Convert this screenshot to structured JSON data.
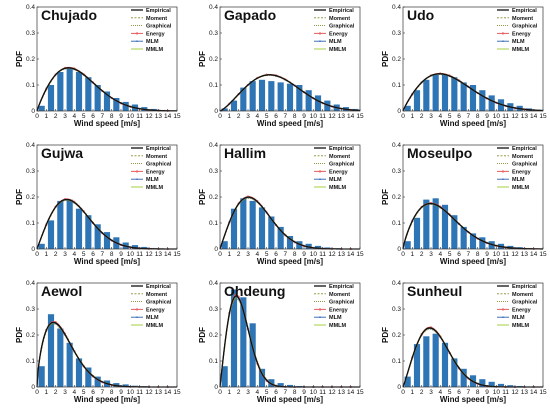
{
  "chart_data": [
    {
      "type": "bar",
      "title": "Chujado",
      "xlabel": "Wind speed [m/s]",
      "ylabel": "PDF",
      "ylim": [
        0,
        0.4
      ],
      "yticks": [
        "0",
        "0.1",
        "0.2",
        "0.3",
        "0.4"
      ],
      "xlim": [
        0,
        15
      ],
      "xticks": [
        "0",
        "1",
        "2",
        "3",
        "4",
        "5",
        "6",
        "7",
        "8",
        "9",
        "10",
        "11",
        "12",
        "13",
        "14",
        "15"
      ],
      "bin_centers": [
        0.5,
        1.5,
        2.5,
        3.5,
        4.5,
        5.5,
        6.5,
        7.5,
        8.5,
        9.5,
        10.5,
        11.5,
        12.5,
        13.5,
        14.5
      ],
      "values": [
        0.02,
        0.1,
        0.15,
        0.165,
        0.15,
        0.13,
        0.1,
        0.075,
        0.05,
        0.035,
        0.025,
        0.015,
        0.008,
        0.004,
        0.002
      ],
      "fits": {
        "shape_k": 1.9,
        "scale_c": 5.0
      },
      "legend": [
        "Empirical",
        "Moment",
        "Graphical",
        "Energy",
        "MLM",
        "MMLM"
      ]
    },
    {
      "type": "bar",
      "title": "Gapado",
      "xlabel": "Wind speed [m/s]",
      "ylabel": "PDF",
      "ylim": [
        0,
        0.4
      ],
      "yticks": [
        "0",
        "0.1",
        "0.2",
        "0.3",
        "0.4"
      ],
      "xlim": [
        0,
        15
      ],
      "xticks": [
        "0",
        "1",
        "2",
        "3",
        "4",
        "5",
        "6",
        "7",
        "8",
        "9",
        "10",
        "11",
        "12",
        "13",
        "14",
        "15"
      ],
      "bin_centers": [
        0.5,
        1.5,
        2.5,
        3.5,
        4.5,
        5.5,
        6.5,
        7.5,
        8.5,
        9.5,
        10.5,
        11.5,
        12.5,
        13.5,
        14.5
      ],
      "values": [
        0.01,
        0.04,
        0.09,
        0.115,
        0.12,
        0.115,
        0.11,
        0.105,
        0.1,
        0.08,
        0.06,
        0.04,
        0.025,
        0.015,
        0.008
      ],
      "fits": {
        "shape_k": 2.3,
        "scale_c": 6.8
      },
      "legend": [
        "Empirical",
        "Moment",
        "Graphical",
        "Energy",
        "MLM",
        "MMLM"
      ]
    },
    {
      "type": "bar",
      "title": "Udo",
      "xlabel": "Wind speed [m/s]",
      "ylabel": "PDF",
      "ylim": [
        0,
        0.4
      ],
      "yticks": [
        "0",
        "0.1",
        "0.2",
        "0.3",
        "0.4"
      ],
      "xlim": [
        0,
        15
      ],
      "xticks": [
        "0",
        "1",
        "2",
        "3",
        "4",
        "5",
        "6",
        "7",
        "8",
        "9",
        "10",
        "11",
        "12",
        "13",
        "14",
        "15"
      ],
      "bin_centers": [
        0.5,
        1.5,
        2.5,
        3.5,
        4.5,
        5.5,
        6.5,
        7.5,
        8.5,
        9.5,
        10.5,
        11.5,
        12.5,
        13.5,
        14.5
      ],
      "values": [
        0.02,
        0.08,
        0.12,
        0.14,
        0.14,
        0.13,
        0.11,
        0.1,
        0.08,
        0.06,
        0.045,
        0.03,
        0.02,
        0.01,
        0.005
      ],
      "fits": {
        "shape_k": 1.9,
        "scale_c": 5.8
      },
      "legend": [
        "Empirical",
        "Moment",
        "Graphical",
        "Energy",
        "MLM",
        "MMLM"
      ]
    },
    {
      "type": "bar",
      "title": "Gujwa",
      "xlabel": "Wind speed [m/s]",
      "ylabel": "PDF",
      "ylim": [
        0,
        0.4
      ],
      "yticks": [
        "0",
        "0.1",
        "0.2",
        "0.3",
        "0.4"
      ],
      "xlim": [
        0,
        15
      ],
      "xticks": [
        "0",
        "1",
        "2",
        "3",
        "4",
        "5",
        "6",
        "7",
        "8",
        "9",
        "10",
        "11",
        "12",
        "13",
        "14",
        "15"
      ],
      "bin_centers": [
        0.5,
        1.5,
        2.5,
        3.5,
        4.5,
        5.5,
        6.5,
        7.5,
        8.5,
        9.5,
        10.5,
        11.5,
        12.5,
        13.5,
        14.5
      ],
      "values": [
        0.02,
        0.11,
        0.185,
        0.19,
        0.155,
        0.13,
        0.095,
        0.065,
        0.045,
        0.025,
        0.015,
        0.008,
        0.004,
        0.002,
        0.001
      ],
      "fits": {
        "shape_k": 2.0,
        "scale_c": 4.5
      },
      "legend": [
        "Empirical",
        "Moment",
        "Graphical",
        "Energy",
        "MLM",
        "MMLM"
      ]
    },
    {
      "type": "bar",
      "title": "Hallim",
      "xlabel": "Wind speed [m/s]",
      "ylabel": "PDF",
      "ylim": [
        0,
        0.4
      ],
      "yticks": [
        "0",
        "0.1",
        "0.2",
        "0.3",
        "0.4"
      ],
      "xlim": [
        0,
        15
      ],
      "xticks": [
        "0",
        "1",
        "2",
        "3",
        "4",
        "5",
        "6",
        "7",
        "8",
        "9",
        "10",
        "11",
        "12",
        "13",
        "14",
        "15"
      ],
      "bin_centers": [
        0.5,
        1.5,
        2.5,
        3.5,
        4.5,
        5.5,
        6.5,
        7.5,
        8.5,
        9.5,
        10.5,
        11.5,
        12.5,
        13.5,
        14.5
      ],
      "values": [
        0.03,
        0.155,
        0.195,
        0.185,
        0.16,
        0.125,
        0.085,
        0.05,
        0.03,
        0.02,
        0.012,
        0.006,
        0.003,
        0.001,
        0.001
      ],
      "fits": {
        "shape_k": 2.0,
        "scale_c": 4.3
      },
      "legend": [
        "Empirical",
        "Moment",
        "Graphical",
        "Energy",
        "MLM",
        "MMLM"
      ]
    },
    {
      "type": "bar",
      "title": "Moseulpo",
      "xlabel": "Wind speed [m/s]",
      "ylabel": "PDF",
      "ylim": [
        0,
        0.4
      ],
      "yticks": [
        "0",
        "0.1",
        "0.2",
        "0.3",
        "0.4"
      ],
      "xlim": [
        0,
        15
      ],
      "xticks": [
        "0",
        "1",
        "2",
        "3",
        "4",
        "5",
        "6",
        "7",
        "8",
        "9",
        "10",
        "11",
        "12",
        "13",
        "14",
        "15"
      ],
      "bin_centers": [
        0.5,
        1.5,
        2.5,
        3.5,
        4.5,
        5.5,
        6.5,
        7.5,
        8.5,
        9.5,
        10.5,
        11.5,
        12.5,
        13.5,
        14.5
      ],
      "values": [
        0.03,
        0.12,
        0.19,
        0.195,
        0.17,
        0.13,
        0.085,
        0.06,
        0.045,
        0.03,
        0.02,
        0.012,
        0.007,
        0.004,
        0.002
      ],
      "fits": {
        "shape_k": 1.8,
        "scale_c": 4.6
      },
      "legend": [
        "Empirical",
        "Moment",
        "Graphical",
        "Energy",
        "MLM",
        "MMLM"
      ]
    },
    {
      "type": "bar",
      "title": "Aewol",
      "xlabel": "Wind speed [m/s]",
      "ylabel": "PDF",
      "ylim": [
        0,
        0.4
      ],
      "yticks": [
        "0",
        "0.1",
        "0.2",
        "0.3",
        "0.4"
      ],
      "xlim": [
        0,
        15
      ],
      "xticks": [
        "0",
        "1",
        "2",
        "3",
        "4",
        "5",
        "6",
        "7",
        "8",
        "9",
        "10",
        "11",
        "12",
        "13",
        "14",
        "15"
      ],
      "bin_centers": [
        0.5,
        1.5,
        2.5,
        3.5,
        4.5,
        5.5,
        6.5,
        7.5,
        8.5,
        9.5,
        10.5,
        11.5,
        12.5,
        13.5,
        14.5
      ],
      "values": [
        0.08,
        0.28,
        0.225,
        0.17,
        0.11,
        0.075,
        0.04,
        0.025,
        0.015,
        0.01,
        0.005,
        0.003,
        0.001,
        0.001,
        0.0
      ],
      "fits": {
        "shape_k": 1.65,
        "scale_c": 3.1
      },
      "legend": [
        "Empirical",
        "Moment",
        "Graphical",
        "Energy",
        "MLM",
        "MMLM"
      ]
    },
    {
      "type": "bar",
      "title": "Ohdeung",
      "xlabel": "Wind speed [m/s]",
      "ylabel": "PDF",
      "ylim": [
        0,
        0.4
      ],
      "yticks": [
        "0",
        "0.1",
        "0.2",
        "0.3",
        "0.4"
      ],
      "xlim": [
        0,
        15
      ],
      "xticks": [
        "0",
        "1",
        "2",
        "3",
        "4",
        "5",
        "6",
        "7",
        "8",
        "9",
        "10",
        "11",
        "12",
        "13",
        "14",
        "15"
      ],
      "bin_centers": [
        0.5,
        1.5,
        2.5,
        3.5,
        4.5,
        5.5,
        6.5,
        7.5,
        8.5,
        9.5,
        10.5,
        11.5,
        12.5,
        13.5,
        14.5
      ],
      "values": [
        0.08,
        0.375,
        0.345,
        0.245,
        0.07,
        0.03,
        0.015,
        0.008,
        0.004,
        0.002,
        0.001,
        0.0,
        0.0,
        0.0,
        0.0
      ],
      "fits": {
        "shape_k": 2.0,
        "scale_c": 2.45
      },
      "legend": [
        "Empirical",
        "Moment",
        "Graphical",
        "Energy",
        "MLM",
        "MMLM"
      ]
    },
    {
      "type": "bar",
      "title": "Sunheul",
      "xlabel": "Wind speed [m/s]",
      "ylabel": "PDF",
      "ylim": [
        0,
        0.4
      ],
      "yticks": [
        "0",
        "0.1",
        "0.2",
        "0.3",
        "0.4"
      ],
      "xlim": [
        0,
        15
      ],
      "xticks": [
        "0",
        "1",
        "2",
        "3",
        "4",
        "5",
        "6",
        "7",
        "8",
        "9",
        "10",
        "11",
        "12",
        "13",
        "14",
        "15"
      ],
      "bin_centers": [
        0.5,
        1.5,
        2.5,
        3.5,
        4.5,
        5.5,
        6.5,
        7.5,
        8.5,
        9.5,
        10.5,
        11.5,
        12.5,
        13.5,
        14.5
      ],
      "values": [
        0.04,
        0.165,
        0.195,
        0.205,
        0.17,
        0.11,
        0.07,
        0.045,
        0.03,
        0.02,
        0.012,
        0.007,
        0.004,
        0.002,
        0.001
      ],
      "fits": {
        "shape_k": 2.1,
        "scale_c": 3.9
      },
      "legend": [
        "Empirical",
        "Moment",
        "Graphical",
        "Energy",
        "MLM",
        "MMLM"
      ]
    }
  ],
  "colors": {
    "bar": "#2e75b6",
    "Empirical": "#111111",
    "Moment": "#8a8a2a",
    "Graphical": "#8a8a2a",
    "Energy": "#e85b5b",
    "MLM": "#2a62b0",
    "MMLM": "#9acd32"
  }
}
